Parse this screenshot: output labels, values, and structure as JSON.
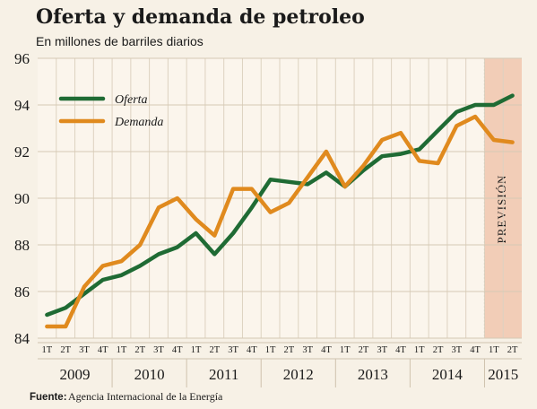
{
  "chart_data": {
    "type": "line",
    "title": "Oferta y demanda de petroleo",
    "subtitle": "En millones de barriles diarios",
    "ylim": [
      84,
      96
    ],
    "yticks": [
      84,
      86,
      88,
      90,
      92,
      94,
      96
    ],
    "grid": true,
    "legend_position": "top-left",
    "forecast_label": "PREVISIÓN",
    "forecast_quarters": [
      "2015 1T",
      "2015 2T"
    ],
    "quarter_labels": [
      "1T",
      "2T",
      "3T",
      "4T",
      "1T",
      "2T",
      "3T",
      "4T",
      "1T",
      "2T",
      "3T",
      "4T",
      "1T",
      "2T",
      "3T",
      "4T",
      "1T",
      "2T",
      "3T",
      "4T",
      "1T",
      "2T",
      "3T",
      "4T",
      "1T",
      "2T"
    ],
    "years": [
      "2009",
      "2010",
      "2011",
      "2012",
      "2013",
      "2014",
      "2015"
    ],
    "series": [
      {
        "name": "Oferta",
        "color": "#1f6b34",
        "values": [
          85.0,
          85.3,
          85.9,
          86.5,
          86.7,
          87.1,
          87.6,
          87.9,
          88.5,
          87.6,
          88.5,
          89.6,
          90.8,
          90.7,
          90.6,
          91.1,
          90.5,
          91.2,
          91.8,
          91.9,
          92.1,
          92.9,
          93.7,
          94.0,
          94.0,
          94.4
        ]
      },
      {
        "name": "Demanda",
        "color": "#e08a1e",
        "values": [
          84.5,
          84.5,
          86.2,
          87.1,
          87.3,
          88.0,
          89.6,
          90.0,
          89.1,
          88.4,
          90.4,
          90.4,
          89.4,
          89.8,
          90.9,
          92.0,
          90.5,
          91.4,
          92.5,
          92.8,
          91.6,
          91.5,
          93.1,
          93.5,
          92.5,
          92.4
        ]
      }
    ]
  },
  "source": {
    "label": "Fuente:",
    "text": "Agencia Internacional de la Energía"
  }
}
